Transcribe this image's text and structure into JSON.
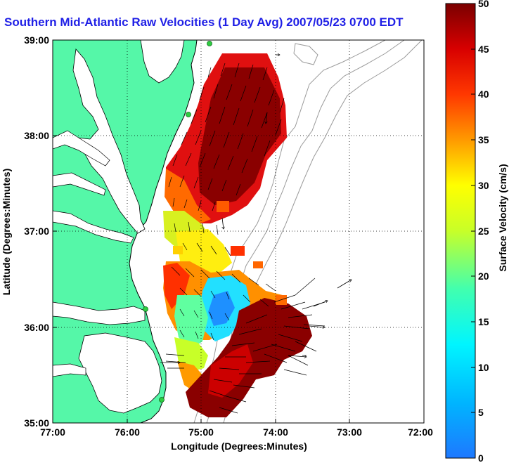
{
  "title": "Southern Mid-Atlantic Raw Velocities (1 Day Avg) 2007/05/23 0700 EDT",
  "axes": {
    "x_label": "Longitude (Degrees:Minutes)",
    "y_label": "Latitude (Degrees:Minutes)",
    "x_ticks": [
      "77:00",
      "76:00",
      "75:00",
      "74:00",
      "73:00",
      "72:00"
    ],
    "y_ticks": [
      "39:00",
      "38:00",
      "37:00",
      "36:00",
      "35:00"
    ],
    "grid": "dotted"
  },
  "colorbar": {
    "label": "Surface Velocity (cm/s)",
    "ticks": [
      "50",
      "45",
      "40",
      "35",
      "30",
      "25",
      "20",
      "15",
      "10",
      "5",
      "0"
    ],
    "range": [
      0,
      50
    ]
  },
  "chart_data": {
    "type": "heatmap",
    "description_units": "surface current speed cm/s over lon/lat",
    "x_range_deg": [
      -77,
      -72
    ],
    "y_range_deg": [
      35,
      39
    ],
    "value_range": [
      0,
      50
    ],
    "colors": {
      "land": "#55f7a8",
      "coast": "#000000",
      "bathymetry": "#9a9a9a",
      "site_marker": "#2ecc40"
    }
  }
}
